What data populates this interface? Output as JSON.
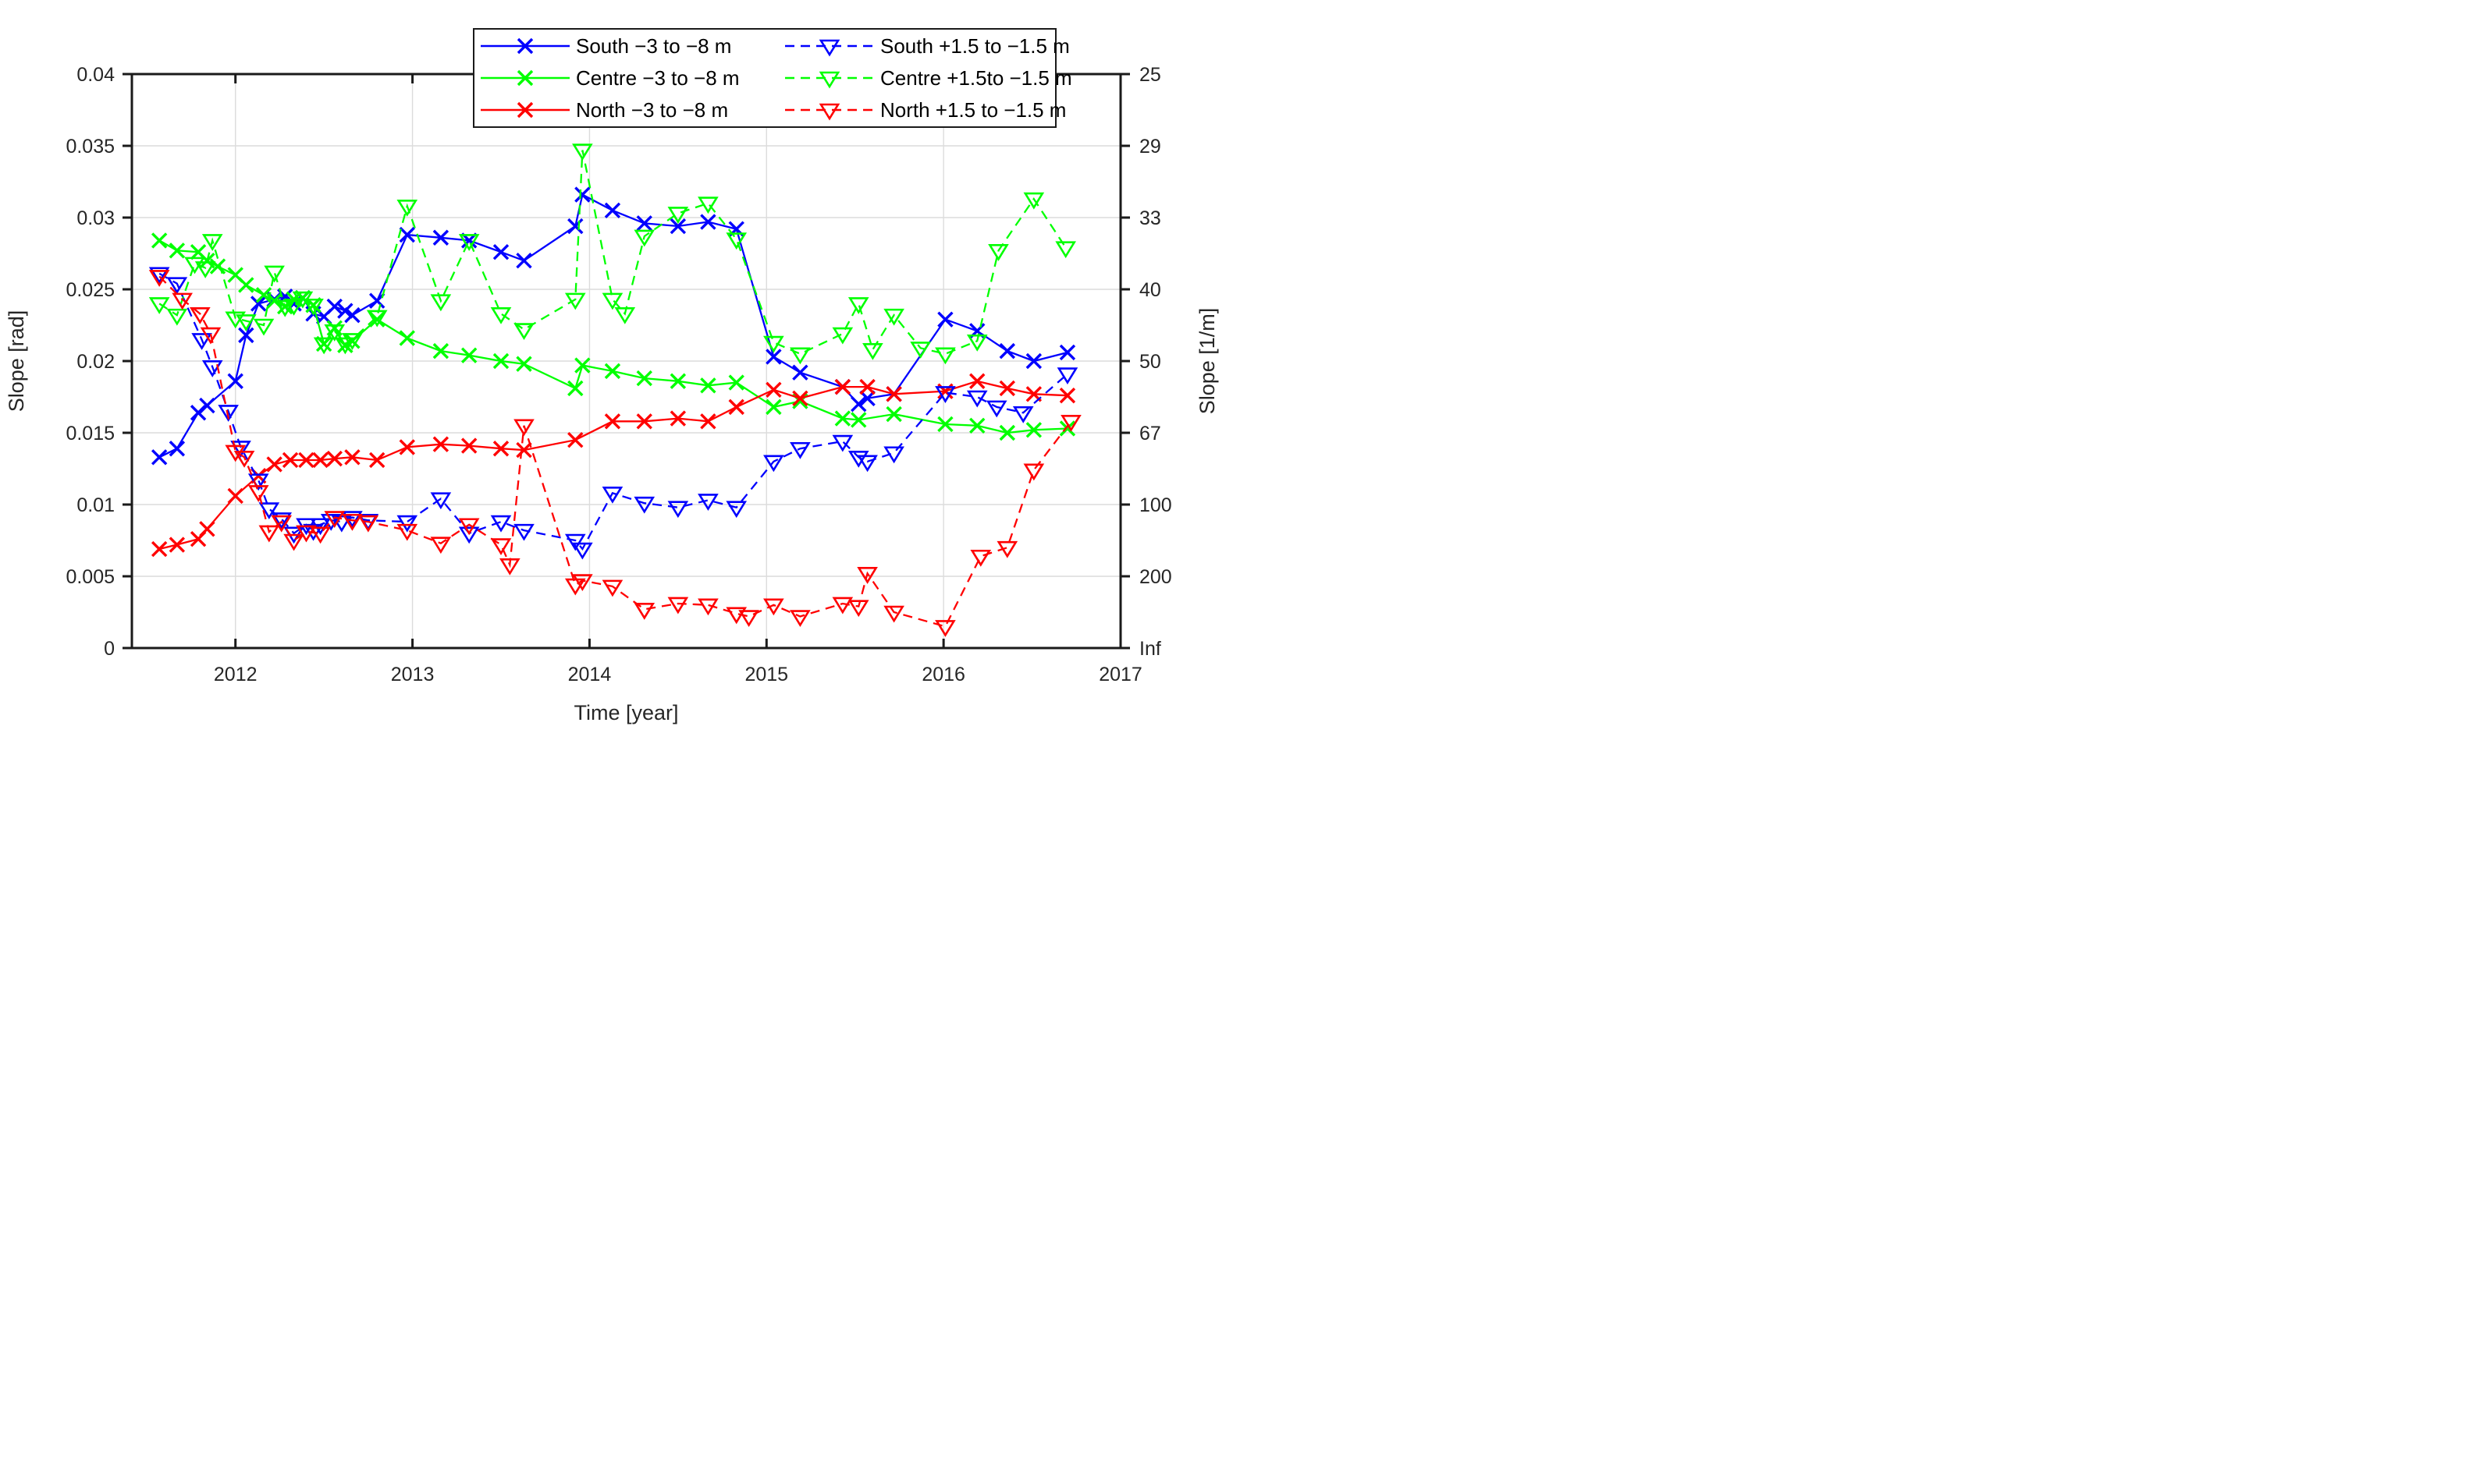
{
  "figure": {
    "xlabel": "Time [year]",
    "ylabel_left": "Slope [rad]",
    "ylabel_right": "Slope [1/m]"
  },
  "chart_data": {
    "type": "line",
    "title": "",
    "xlabel": "Time [year]",
    "ylabel_left": "Slope [rad]",
    "ylabel_right": "Slope [1/m]",
    "xlim": [
      2011.415,
      2017
    ],
    "ylim": [
      0,
      0.04
    ],
    "grid": true,
    "legend_position": "top-center",
    "xticks": {
      "values": [
        2012,
        2013,
        2014,
        2015,
        2016,
        2017
      ],
      "labels": [
        "2012",
        "2013",
        "2014",
        "2015",
        "2016",
        "2017"
      ]
    },
    "yticks_left": {
      "values": [
        0,
        0.005,
        0.01,
        0.015,
        0.02,
        0.025,
        0.03,
        0.035,
        0.04
      ],
      "labels": [
        "0",
        "0.005",
        "0.01",
        "0.015",
        "0.02",
        "0.025",
        "0.03",
        "0.035",
        "0.04"
      ]
    },
    "yticks_right": {
      "values": [
        0,
        0.005,
        0.01,
        0.015,
        0.02,
        0.025,
        0.03,
        0.035,
        0.04
      ],
      "labels": [
        "Inf",
        "200",
        "100",
        "67",
        "50",
        "40",
        "33",
        "29",
        "25"
      ]
    },
    "colors": {
      "south": "#0000ff",
      "centre": "#00ff00",
      "north": "#ff0000",
      "grid": "#dcdcdc",
      "axis": "#1a1a1a",
      "text": "#262626"
    },
    "series": [
      {
        "name": "South −3 to −8 m",
        "id": "south-deep",
        "color": "#0000ff",
        "line": "solid",
        "marker": "x",
        "points": [
          [
            2011.57,
            0.0133
          ],
          [
            2011.67,
            0.0139
          ],
          [
            2011.79,
            0.0164
          ],
          [
            2011.84,
            0.0169
          ],
          [
            2012.0,
            0.0186
          ],
          [
            2012.06,
            0.0218
          ],
          [
            2012.13,
            0.024
          ],
          [
            2012.22,
            0.0243
          ],
          [
            2012.28,
            0.0245
          ],
          [
            2012.33,
            0.024
          ],
          [
            2012.38,
            0.0244
          ],
          [
            2012.44,
            0.0233
          ],
          [
            2012.5,
            0.0231
          ],
          [
            2012.56,
            0.0238
          ],
          [
            2012.62,
            0.0235
          ],
          [
            2012.66,
            0.0232
          ],
          [
            2012.8,
            0.0242
          ],
          [
            2012.97,
            0.0288
          ],
          [
            2013.16,
            0.0286
          ],
          [
            2013.32,
            0.0284
          ],
          [
            2013.5,
            0.0276
          ],
          [
            2013.63,
            0.027
          ],
          [
            2013.92,
            0.0294
          ],
          [
            2013.96,
            0.0316
          ],
          [
            2014.13,
            0.0305
          ],
          [
            2014.31,
            0.0296
          ],
          [
            2014.5,
            0.0294
          ],
          [
            2014.67,
            0.0297
          ],
          [
            2014.83,
            0.0292
          ],
          [
            2015.04,
            0.0203
          ],
          [
            2015.19,
            0.0192
          ],
          [
            2015.43,
            0.0182
          ],
          [
            2015.52,
            0.017
          ],
          [
            2015.57,
            0.0174
          ],
          [
            2015.72,
            0.0177
          ],
          [
            2016.01,
            0.0229
          ],
          [
            2016.19,
            0.0221
          ],
          [
            2016.36,
            0.0207
          ],
          [
            2016.51,
            0.02
          ],
          [
            2016.7,
            0.0206
          ]
        ]
      },
      {
        "name": "Centre −3 to −8 m",
        "id": "centre-deep",
        "color": "#00ff00",
        "line": "solid",
        "marker": "x",
        "points": [
          [
            2011.57,
            0.0284
          ],
          [
            2011.67,
            0.0277
          ],
          [
            2011.79,
            0.0276
          ],
          [
            2011.84,
            0.027
          ],
          [
            2011.9,
            0.0266
          ],
          [
            2012.0,
            0.026
          ],
          [
            2012.06,
            0.0253
          ],
          [
            2012.16,
            0.0246
          ],
          [
            2012.22,
            0.0242
          ],
          [
            2012.28,
            0.0238
          ],
          [
            2012.33,
            0.0243
          ],
          [
            2012.38,
            0.0244
          ],
          [
            2012.44,
            0.0239
          ],
          [
            2012.5,
            0.0212
          ],
          [
            2012.56,
            0.0223
          ],
          [
            2012.62,
            0.0211
          ],
          [
            2012.66,
            0.0214
          ],
          [
            2012.8,
            0.0229
          ],
          [
            2012.97,
            0.0216
          ],
          [
            2013.16,
            0.0207
          ],
          [
            2013.32,
            0.0204
          ],
          [
            2013.5,
            0.02
          ],
          [
            2013.63,
            0.0198
          ],
          [
            2013.92,
            0.0181
          ],
          [
            2013.96,
            0.0197
          ],
          [
            2014.13,
            0.0193
          ],
          [
            2014.31,
            0.0188
          ],
          [
            2014.5,
            0.0186
          ],
          [
            2014.67,
            0.0183
          ],
          [
            2014.83,
            0.0185
          ],
          [
            2015.04,
            0.0168
          ],
          [
            2015.19,
            0.0172
          ],
          [
            2015.43,
            0.016
          ],
          [
            2015.52,
            0.0159
          ],
          [
            2015.72,
            0.0163
          ],
          [
            2016.01,
            0.0156
          ],
          [
            2016.19,
            0.0155
          ],
          [
            2016.36,
            0.015
          ],
          [
            2016.51,
            0.0152
          ],
          [
            2016.7,
            0.0153
          ]
        ]
      },
      {
        "name": "North −3 to −8 m",
        "id": "north-deep",
        "color": "#ff0000",
        "line": "solid",
        "marker": "x",
        "points": [
          [
            2011.57,
            0.0069
          ],
          [
            2011.67,
            0.0072
          ],
          [
            2011.79,
            0.0076
          ],
          [
            2011.84,
            0.0083
          ],
          [
            2012.0,
            0.0106
          ],
          [
            2012.13,
            0.012
          ],
          [
            2012.22,
            0.0128
          ],
          [
            2012.31,
            0.0131
          ],
          [
            2012.4,
            0.0131
          ],
          [
            2012.48,
            0.0131
          ],
          [
            2012.56,
            0.0132
          ],
          [
            2012.66,
            0.0133
          ],
          [
            2012.8,
            0.0131
          ],
          [
            2012.97,
            0.014
          ],
          [
            2013.16,
            0.0142
          ],
          [
            2013.32,
            0.0141
          ],
          [
            2013.5,
            0.0139
          ],
          [
            2013.63,
            0.0138
          ],
          [
            2013.92,
            0.0145
          ],
          [
            2014.13,
            0.0158
          ],
          [
            2014.31,
            0.0158
          ],
          [
            2014.5,
            0.016
          ],
          [
            2014.67,
            0.0158
          ],
          [
            2014.83,
            0.0168
          ],
          [
            2015.04,
            0.018
          ],
          [
            2015.19,
            0.0174
          ],
          [
            2015.43,
            0.0182
          ],
          [
            2015.57,
            0.0182
          ],
          [
            2015.72,
            0.0177
          ],
          [
            2016.01,
            0.0179
          ],
          [
            2016.19,
            0.0186
          ],
          [
            2016.36,
            0.0181
          ],
          [
            2016.51,
            0.0177
          ],
          [
            2016.7,
            0.0176
          ]
        ]
      },
      {
        "name": "South +1.5 to −1.5 m",
        "id": "south-shallow",
        "color": "#0000ff",
        "line": "dashed",
        "marker": "triangle-down",
        "points": [
          [
            2011.57,
            0.0261
          ],
          [
            2011.67,
            0.0254
          ],
          [
            2011.81,
            0.0215
          ],
          [
            2011.87,
            0.0196
          ],
          [
            2011.96,
            0.0165
          ],
          [
            2012.03,
            0.014
          ],
          [
            2012.13,
            0.0117
          ],
          [
            2012.19,
            0.0097
          ],
          [
            2012.26,
            0.009
          ],
          [
            2012.33,
            0.008
          ],
          [
            2012.4,
            0.0086
          ],
          [
            2012.44,
            0.0082
          ],
          [
            2012.48,
            0.0086
          ],
          [
            2012.54,
            0.0089
          ],
          [
            2012.6,
            0.0088
          ],
          [
            2012.66,
            0.0091
          ],
          [
            2012.75,
            0.0089
          ],
          [
            2012.97,
            0.0088
          ],
          [
            2013.16,
            0.0104
          ],
          [
            2013.32,
            0.008
          ],
          [
            2013.5,
            0.0088
          ],
          [
            2013.63,
            0.0082
          ],
          [
            2013.92,
            0.0075
          ],
          [
            2013.96,
            0.0069
          ],
          [
            2014.13,
            0.0108
          ],
          [
            2014.31,
            0.0101
          ],
          [
            2014.5,
            0.0098
          ],
          [
            2014.67,
            0.0103
          ],
          [
            2014.83,
            0.0098
          ],
          [
            2015.04,
            0.013
          ],
          [
            2015.19,
            0.0139
          ],
          [
            2015.43,
            0.0144
          ],
          [
            2015.52,
            0.0133
          ],
          [
            2015.57,
            0.013
          ],
          [
            2015.72,
            0.0136
          ],
          [
            2016.01,
            0.0178
          ],
          [
            2016.19,
            0.0175
          ],
          [
            2016.3,
            0.0168
          ],
          [
            2016.45,
            0.0164
          ],
          [
            2016.7,
            0.0191
          ]
        ]
      },
      {
        "name": "Centre +1.5to −1.5 m",
        "id": "centre-shallow",
        "color": "#00ff00",
        "line": "dashed",
        "marker": "triangle-down",
        "points": [
          [
            2011.57,
            0.024
          ],
          [
            2011.67,
            0.0232
          ],
          [
            2011.77,
            0.0268
          ],
          [
            2011.83,
            0.0265
          ],
          [
            2011.87,
            0.0284
          ],
          [
            2012.0,
            0.023
          ],
          [
            2012.06,
            0.0228
          ],
          [
            2012.16,
            0.0225
          ],
          [
            2012.22,
            0.0262
          ],
          [
            2012.28,
            0.0238
          ],
          [
            2012.33,
            0.0239
          ],
          [
            2012.38,
            0.0244
          ],
          [
            2012.44,
            0.0239
          ],
          [
            2012.5,
            0.0212
          ],
          [
            2012.56,
            0.0221
          ],
          [
            2012.62,
            0.0212
          ],
          [
            2012.66,
            0.0215
          ],
          [
            2012.8,
            0.0231
          ],
          [
            2012.97,
            0.0308
          ],
          [
            2013.16,
            0.0242
          ],
          [
            2013.32,
            0.0284
          ],
          [
            2013.5,
            0.0233
          ],
          [
            2013.63,
            0.0222
          ],
          [
            2013.92,
            0.0243
          ],
          [
            2013.96,
            0.0347
          ],
          [
            2014.13,
            0.0243
          ],
          [
            2014.2,
            0.0233
          ],
          [
            2014.31,
            0.0287
          ],
          [
            2014.5,
            0.0303
          ],
          [
            2014.67,
            0.031
          ],
          [
            2014.83,
            0.0285
          ],
          [
            2015.04,
            0.0213
          ],
          [
            2015.19,
            0.0205
          ],
          [
            2015.43,
            0.0219
          ],
          [
            2015.52,
            0.024
          ],
          [
            2015.6,
            0.0208
          ],
          [
            2015.72,
            0.0232
          ],
          [
            2015.87,
            0.0209
          ],
          [
            2016.01,
            0.0205
          ],
          [
            2016.19,
            0.0214
          ],
          [
            2016.31,
            0.0277
          ],
          [
            2016.51,
            0.0313
          ],
          [
            2016.69,
            0.0279
          ]
        ]
      },
      {
        "name": "North +1.5 to −1.5 m",
        "id": "north-shallow",
        "color": "#ff0000",
        "line": "dashed",
        "marker": "triangle-down",
        "points": [
          [
            2011.57,
            0.0259
          ],
          [
            2011.7,
            0.0243
          ],
          [
            2011.8,
            0.0233
          ],
          [
            2011.86,
            0.0219
          ],
          [
            2012.0,
            0.0137
          ],
          [
            2012.05,
            0.0133
          ],
          [
            2012.13,
            0.0109
          ],
          [
            2012.19,
            0.0081
          ],
          [
            2012.26,
            0.0088
          ],
          [
            2012.33,
            0.0075
          ],
          [
            2012.4,
            0.0081
          ],
          [
            2012.48,
            0.008
          ],
          [
            2012.56,
            0.0091
          ],
          [
            2012.66,
            0.0089
          ],
          [
            2012.75,
            0.0088
          ],
          [
            2012.97,
            0.0082
          ],
          [
            2013.16,
            0.0073
          ],
          [
            2013.32,
            0.0086
          ],
          [
            2013.5,
            0.0072
          ],
          [
            2013.55,
            0.0058
          ],
          [
            2013.63,
            0.0155
          ],
          [
            2013.92,
            0.0044
          ],
          [
            2013.96,
            0.0047
          ],
          [
            2014.13,
            0.0043
          ],
          [
            2014.31,
            0.0027
          ],
          [
            2014.5,
            0.0031
          ],
          [
            2014.67,
            0.003
          ],
          [
            2014.83,
            0.0024
          ],
          [
            2014.9,
            0.0022
          ],
          [
            2015.04,
            0.003
          ],
          [
            2015.19,
            0.0022
          ],
          [
            2015.43,
            0.0031
          ],
          [
            2015.52,
            0.0029
          ],
          [
            2015.57,
            0.0052
          ],
          [
            2015.72,
            0.0025
          ],
          [
            2016.01,
            0.0015
          ],
          [
            2016.21,
            0.0064
          ],
          [
            2016.36,
            0.007
          ],
          [
            2016.51,
            0.0124
          ],
          [
            2016.72,
            0.0158
          ]
        ]
      }
    ],
    "legend_order": [
      "south-deep",
      "south-shallow",
      "centre-deep",
      "centre-shallow",
      "north-deep",
      "north-shallow"
    ]
  }
}
